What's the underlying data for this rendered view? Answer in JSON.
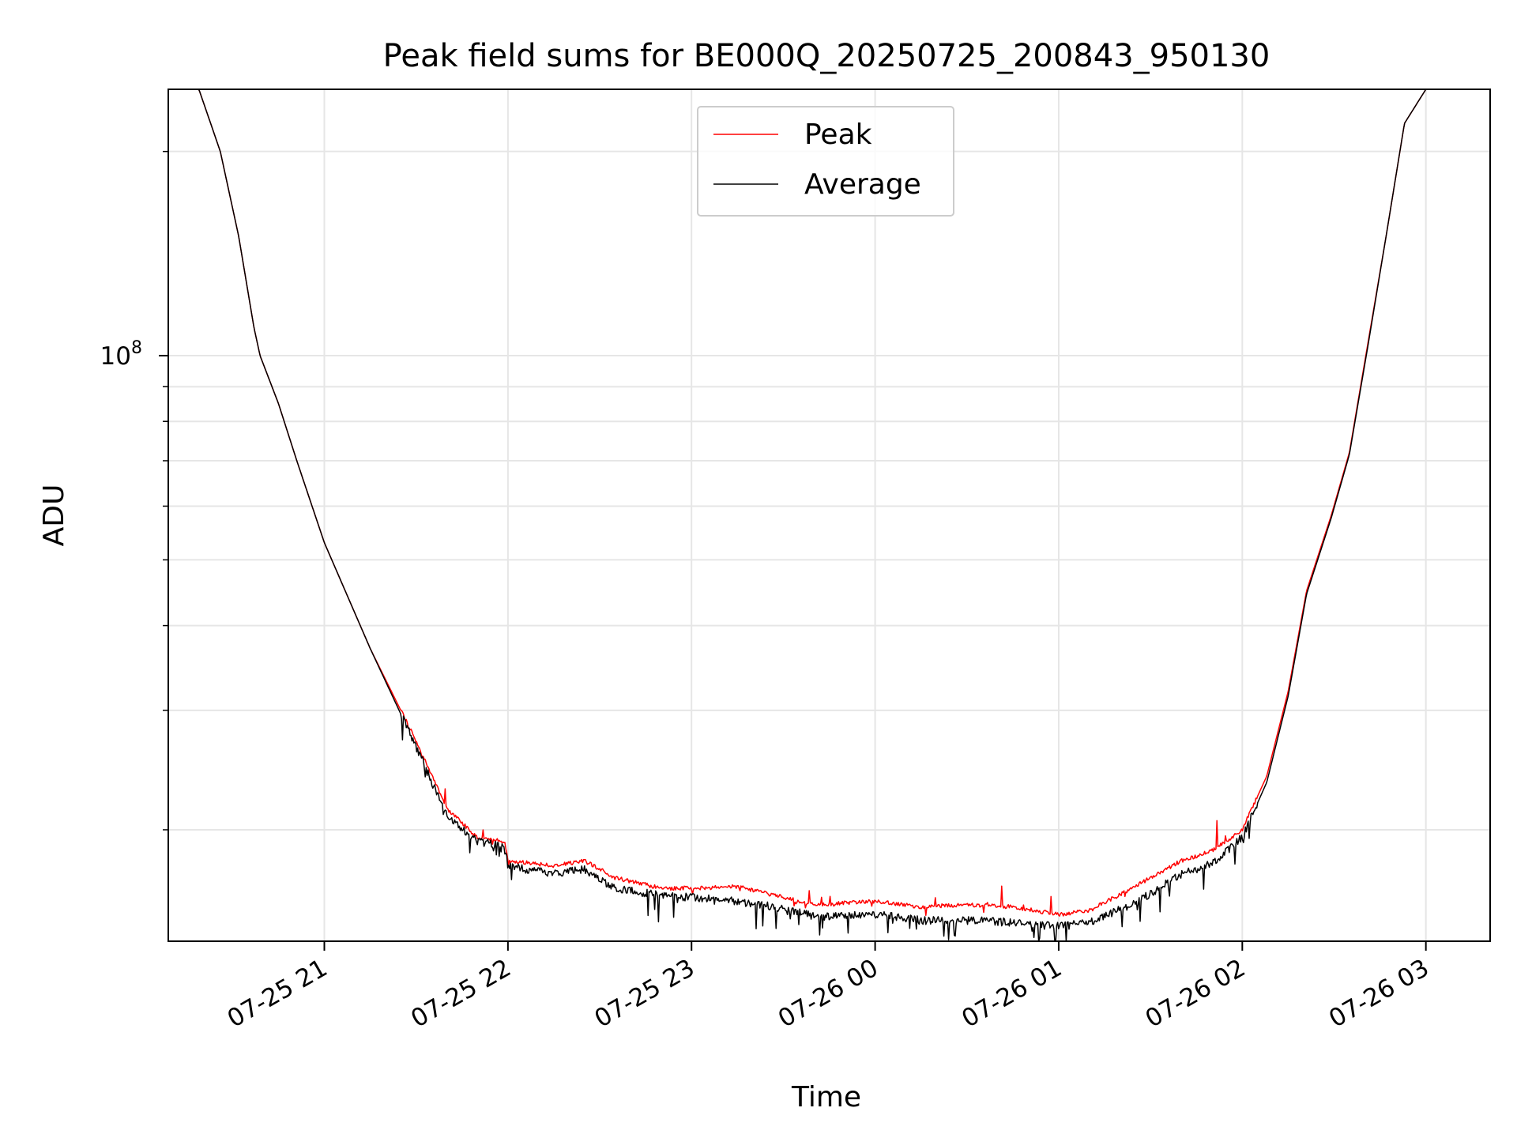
{
  "chart_data": {
    "type": "line",
    "title": "Peak field sums for BE000Q_20250725_200843_950130",
    "xlabel": "Time",
    "ylabel": "ADU",
    "y_scale": "log",
    "ylim": [
      13700000,
      247000000
    ],
    "xlim": [
      "2025-07-25 20:09",
      "2025-07-26 03:21"
    ],
    "x_tick_labels": [
      "07-25 21",
      "07-25 22",
      "07-25 23",
      "07-26 00",
      "07-26 01",
      "07-26 02",
      "07-26 03"
    ],
    "y_major_tick_label": "10^8",
    "y_minor_tick_values": [
      20000000,
      30000000,
      40000000,
      50000000,
      60000000,
      70000000,
      80000000,
      90000000,
      200000000
    ],
    "grid": true,
    "legend_position": "upper center",
    "series": [
      {
        "name": "Peak",
        "color": "#ff0000",
        "x": [
          "2025-07-25 20:09",
          "2025-07-25 20:19",
          "2025-07-25 20:26",
          "2025-07-25 20:32",
          "2025-07-25 20:37",
          "2025-07-25 20:39",
          "2025-07-25 20:45",
          "2025-07-25 20:51",
          "2025-07-25 21:00",
          "2025-07-25 21:15",
          "2025-07-25 21:30",
          "2025-07-25 21:40",
          "2025-07-25 21:50",
          "2025-07-25 21:59",
          "2025-07-25 22:00",
          "2025-07-25 22:15",
          "2025-07-25 22:25",
          "2025-07-25 22:35",
          "2025-07-25 22:50",
          "2025-07-25 23:00",
          "2025-07-25 23:15",
          "2025-07-25 23:30",
          "2025-07-25 23:40",
          "2025-07-26 00:00",
          "2025-07-26 00:15",
          "2025-07-26 00:30",
          "2025-07-26 00:45",
          "2025-07-26 01:00",
          "2025-07-26 01:10",
          "2025-07-26 01:25",
          "2025-07-26 01:40",
          "2025-07-26 01:50",
          "2025-07-26 02:00",
          "2025-07-26 02:08",
          "2025-07-26 02:15",
          "2025-07-26 02:21",
          "2025-07-26 02:29",
          "2025-07-26 02:35",
          "2025-07-26 02:41",
          "2025-07-26 02:47",
          "2025-07-26 02:53",
          "2025-07-26 03:00"
        ],
        "values": [
          247000000,
          247000000,
          200000000,
          150000000,
          110000000,
          100000000,
          85000000,
          70000000,
          53000000,
          37000000,
          27000000,
          21500000,
          19500000,
          19200000,
          18000000,
          17700000,
          18000000,
          17000000,
          16400000,
          16400000,
          16500000,
          15900000,
          15500000,
          15700000,
          15400000,
          15500000,
          15400000,
          15000000,
          15200000,
          16500000,
          18000000,
          18600000,
          20000000,
          24000000,
          32000000,
          45000000,
          58000000,
          72000000,
          104000000,
          150000000,
          220000000,
          247000000
        ]
      },
      {
        "name": "Average",
        "color": "#000000",
        "x": [
          "2025-07-25 20:09",
          "2025-07-25 20:19",
          "2025-07-25 20:26",
          "2025-07-25 20:32",
          "2025-07-25 20:37",
          "2025-07-25 20:39",
          "2025-07-25 20:45",
          "2025-07-25 20:51",
          "2025-07-25 21:00",
          "2025-07-25 21:15",
          "2025-07-25 21:30",
          "2025-07-25 21:40",
          "2025-07-25 21:50",
          "2025-07-25 21:59",
          "2025-07-25 22:00",
          "2025-07-25 22:15",
          "2025-07-25 22:25",
          "2025-07-25 22:35",
          "2025-07-25 22:50",
          "2025-07-25 23:00",
          "2025-07-25 23:15",
          "2025-07-25 23:30",
          "2025-07-25 23:40",
          "2025-07-26 00:00",
          "2025-07-26 00:15",
          "2025-07-26 00:30",
          "2025-07-26 00:45",
          "2025-07-26 01:00",
          "2025-07-26 01:10",
          "2025-07-26 01:25",
          "2025-07-26 01:40",
          "2025-07-26 01:50",
          "2025-07-26 02:00",
          "2025-07-26 02:08",
          "2025-07-26 02:15",
          "2025-07-26 02:21",
          "2025-07-26 02:29",
          "2025-07-26 02:35",
          "2025-07-26 02:41",
          "2025-07-26 02:47",
          "2025-07-26 02:53",
          "2025-07-26 03:00"
        ],
        "values": [
          247000000,
          247000000,
          200000000,
          150000000,
          110000000,
          100000000,
          85000000,
          70000000,
          53000000,
          37000000,
          26500000,
          21000000,
          19200000,
          19000000,
          17700000,
          17200000,
          17500000,
          16400000,
          16000000,
          15900000,
          15700000,
          15300000,
          14900000,
          15000000,
          14700000,
          14700000,
          14600000,
          14400000,
          14600000,
          15600000,
          17200000,
          17800000,
          19500000,
          23500000,
          31500000,
          44500000,
          57500000,
          71500000,
          103000000,
          150000000,
          220000000,
          247000000
        ]
      }
    ]
  }
}
